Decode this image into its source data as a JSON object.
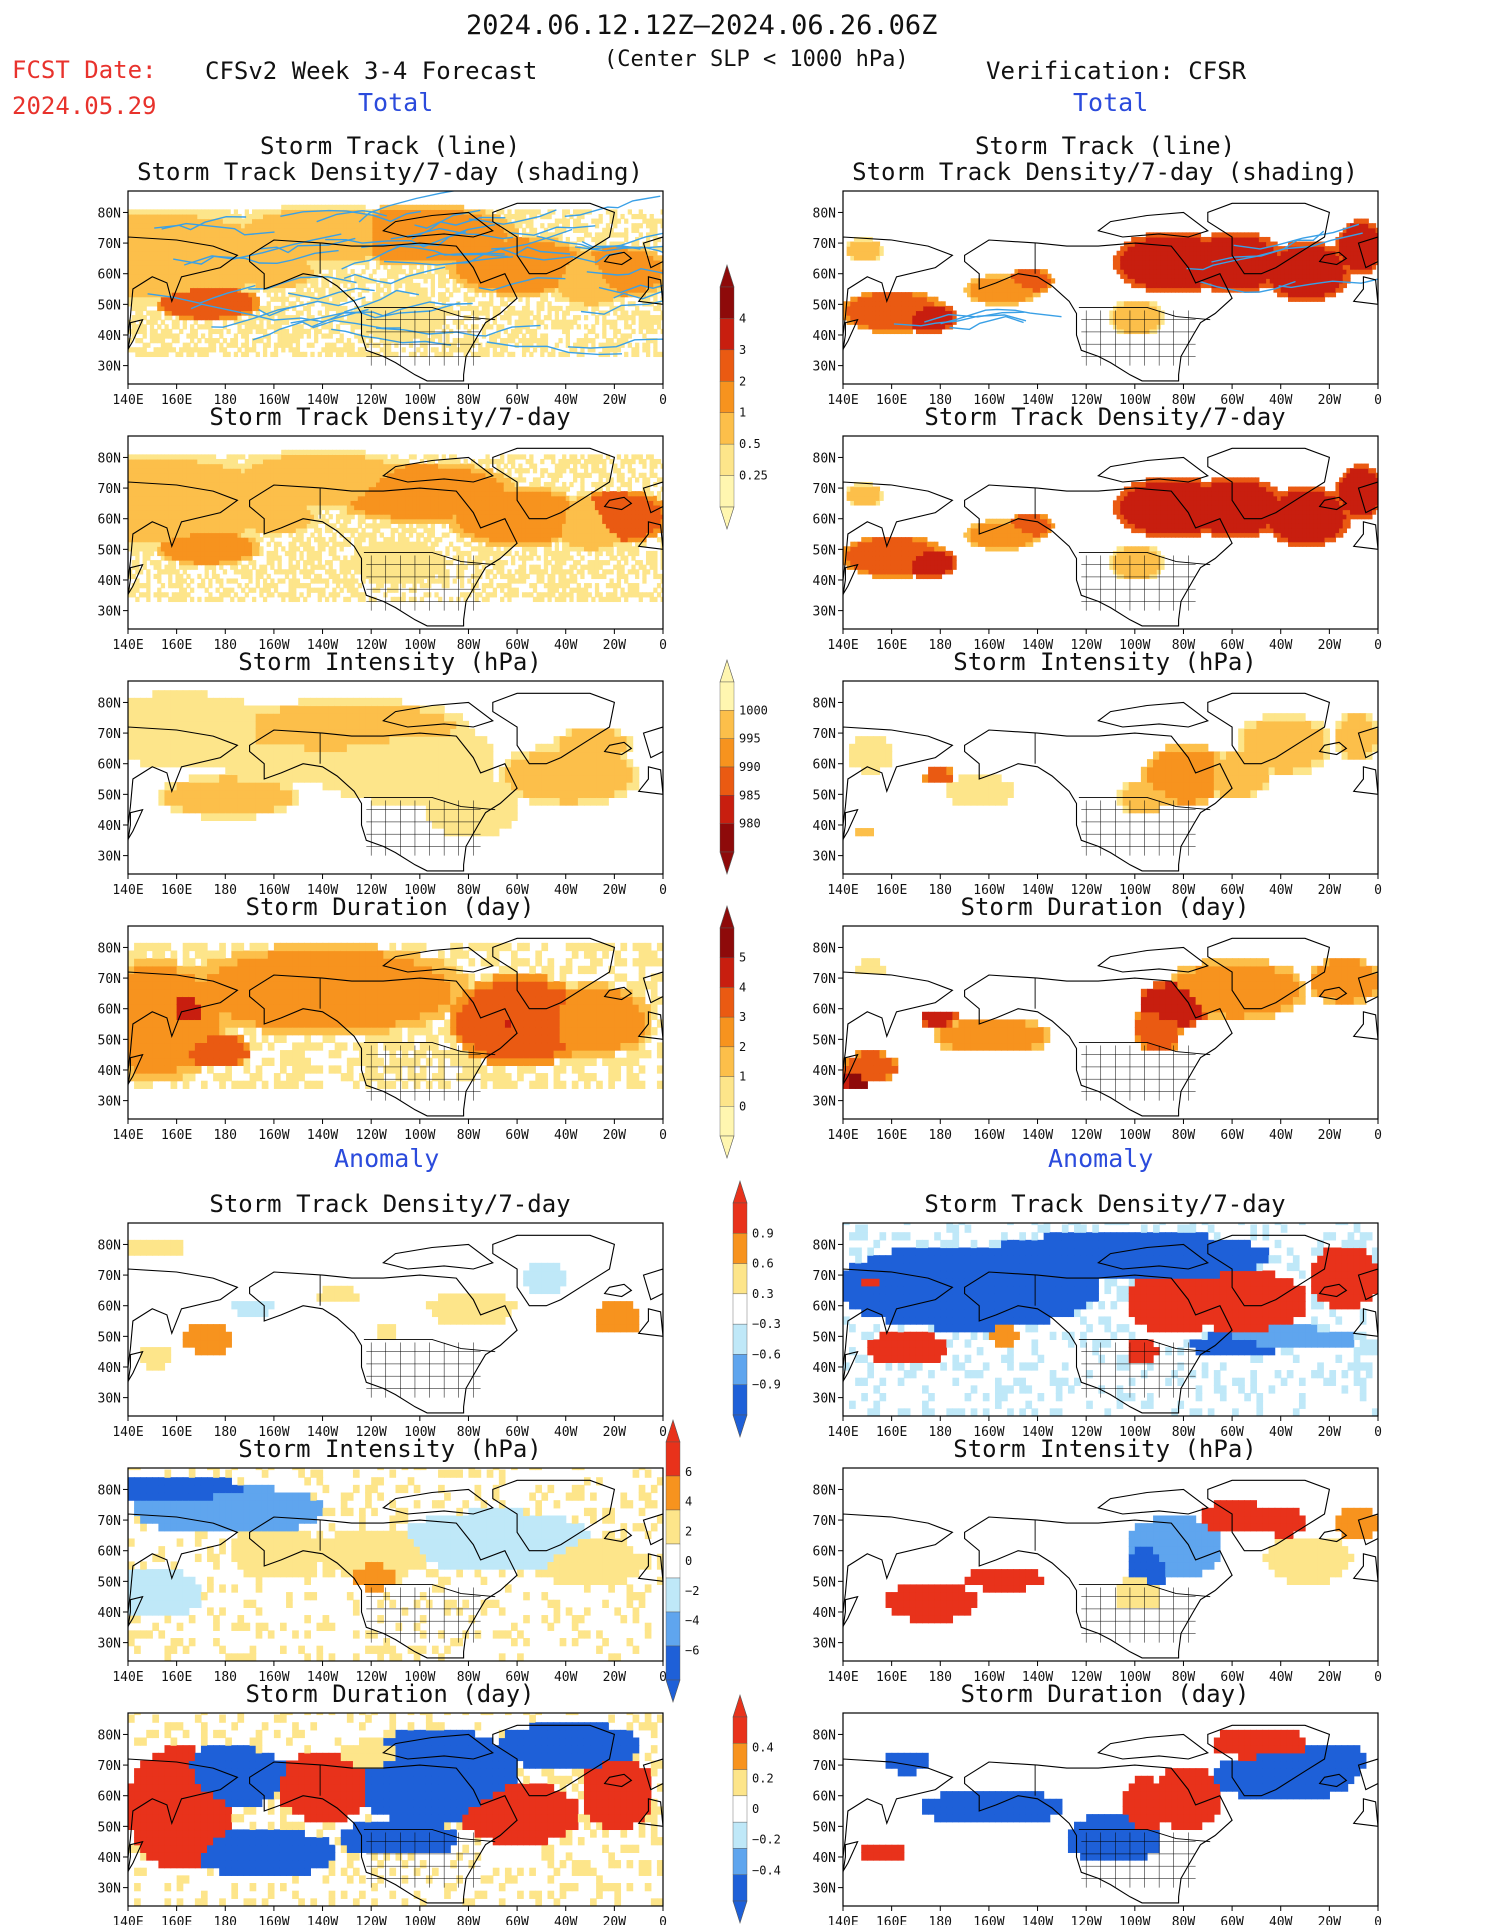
{
  "header": {
    "period": "2024.06.12.12Z–2024.06.26.06Z",
    "fcst_label": "FCST Date:",
    "fcst_date": "2024.05.29",
    "model": "CFSv2 Week 3-4 Forecast",
    "criterion": "(Center SLP < 1000 hPa)",
    "verification": "Verification: CFSR",
    "left_total": "Total",
    "right_total": "Total",
    "left_anomaly": "Anomaly",
    "right_anomaly": "Anomaly"
  },
  "panel_titles": {
    "track_line": "Storm Track (line)",
    "track_shading": "Storm Track Density/7-day (shading)",
    "density": "Storm Track Density/7-day",
    "intensity": "Storm Intensity (hPa)",
    "duration": "Storm Duration (day)"
  },
  "axes": {
    "lat_labels": [
      "80N",
      "70N",
      "60N",
      "50N",
      "40N",
      "30N"
    ],
    "lon_labels": [
      "140E",
      "160E",
      "180",
      "160W",
      "140W",
      "120W",
      "100W",
      "80W",
      "60W",
      "40W",
      "20W",
      "0"
    ]
  },
  "colorbars": {
    "density": [
      "4",
      "3",
      "2",
      "1",
      "0.5",
      "0.25"
    ],
    "intensity": [
      "1000",
      "995",
      "990",
      "985",
      "980"
    ],
    "duration": [
      "5",
      "4",
      "3",
      "2",
      "1",
      "0"
    ],
    "density_anom": [
      "0.9",
      "0.6",
      "0.3",
      "−0.3",
      "−0.6",
      "−0.9"
    ],
    "intensity_anom": [
      "6",
      "4",
      "2",
      "0",
      "−2",
      "−4",
      "−6"
    ],
    "duration_anom": [
      "0.4",
      "0.2",
      "0",
      "−0.2",
      "−0.4"
    ]
  },
  "colors": {
    "seq": [
      "#fff6b0",
      "#fde58a",
      "#fcbf4a",
      "#f7931e",
      "#ea5a12",
      "#c81e0f",
      "#8e0a0a"
    ],
    "div": [
      "#1e60d8",
      "#5fa5ee",
      "#bfe8f8",
      "#ffffff",
      "#fde58a",
      "#f7931e",
      "#e8321b"
    ],
    "track": "#3aa0e6"
  }
}
